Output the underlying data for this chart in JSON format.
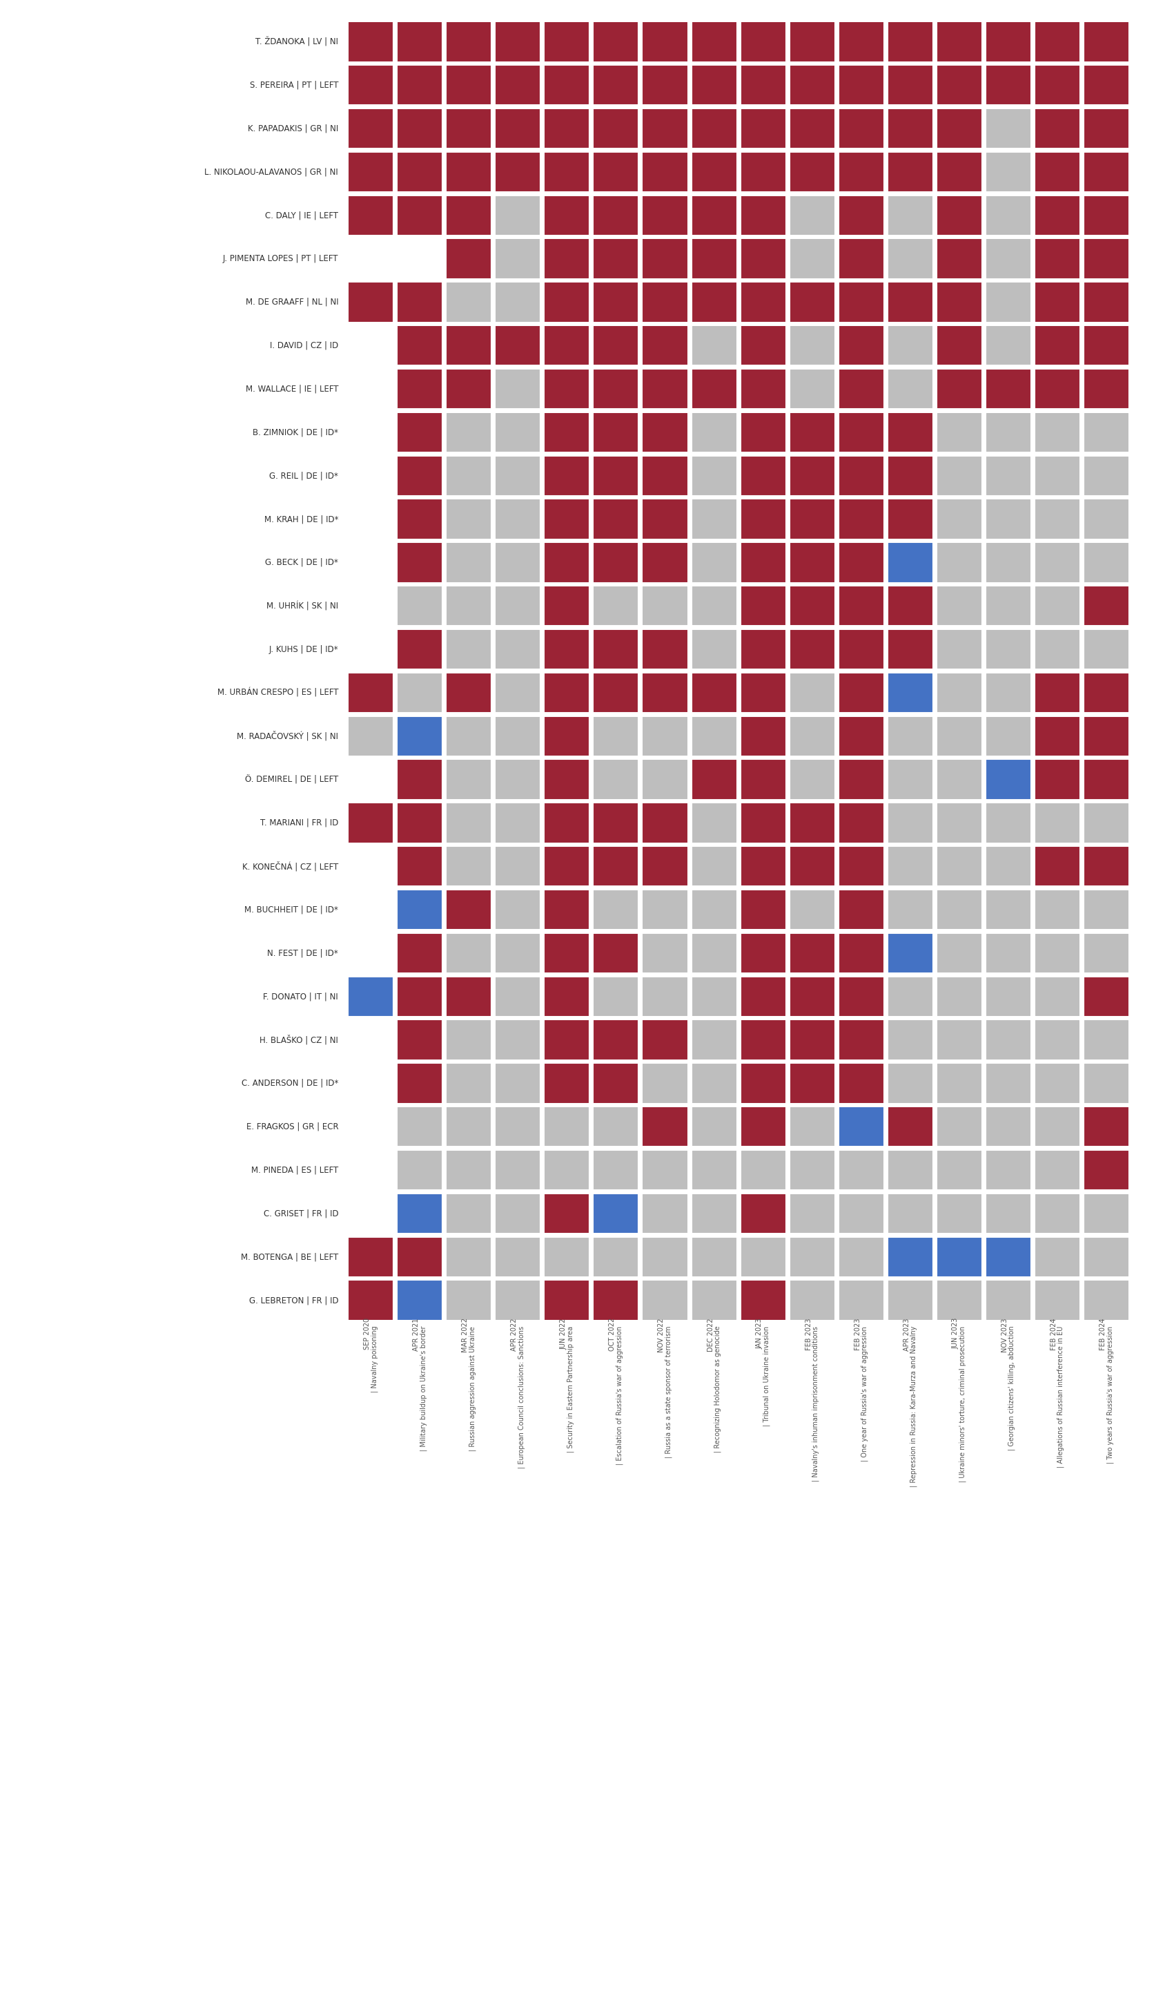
{
  "columns": [
    "Navalny poisoning\nSEP 2020",
    "Military buildup on Ukraine's border\nAPR 2021",
    "Russian aggression against Ukraine\nMAR 2022",
    "European Council conclusions: Sanctions\nAPR 2022",
    "Security in Eastern Partnership area\nJUN 2022",
    "Escalation of Russia's war of aggression\nOCT 2022",
    "Russia as a state sponsor of terrorism\nNOV 2022",
    "Recognizing Holodomor as genocide\nDEC 2022",
    "Tribunal on Ukraine invasion\nJAN 2023",
    "Navalny's inhuman imprisonment conditions\nFEB 2023",
    "One year of Russia's war of aggression\nFEB 2023",
    "Repression in Russia: Kara-Murza and Navalny\nAPR 2023",
    "Ukraine minors' torture, criminal prosecution\nJUN 2023",
    "Georgian citizens' killing, abduction\nNOV 2023",
    "Allegations of Russian interference in EU\nFEB 2024",
    "Two years of Russia's war of aggression\nFEB 2024"
  ],
  "col_dates": [
    "SEP 2020",
    "APR 2021",
    "MAR 2022",
    "APR 2022",
    "JUN 2022",
    "OCT 2022",
    "NOV 2022",
    "DEC 2022",
    "JAN 2023",
    "FEB 2023",
    "FEB 2023",
    "APR 2023",
    "JUN 2023",
    "NOV 2023",
    "FEB 2024",
    "FEB 2024"
  ],
  "col_labels": [
    "Navalny poisoning",
    "Military buildup on Ukraine's border",
    "Russian aggression against Ukraine",
    "European Council conclusions: Sanctions",
    "Security in Eastern Partnership area",
    "Escalation of Russia's war of aggression",
    "Russia as a state sponsor of terrorism",
    "Recognizing Holodomor as genocide",
    "Tribunal on Ukraine invasion",
    "Navalny's inhuman imprisonment conditions",
    "One year of Russia's war of aggression",
    "Repression in Russia: Kara-Murza and Navalny",
    "Ukraine minors' torture, criminal prosecution",
    "Georgian citizens' killing, abduction",
    "Allegations of Russian interference in EU",
    "Two years of Russia's war of aggression"
  ],
  "rows": [
    "T. ŽDANOKA | LV | NI",
    "S. PEREIRA | PT | LEFT",
    "K. PAPADAKIS | GR | NI",
    "L. NIKOLAOU-ALAVANOS | GR | NI",
    "C. DALY | IE | LEFT",
    "J. PIMENTA LOPES | PT | LEFT",
    "M. DE GRAAFF | NL | NI",
    "I. DAVID | CZ | ID",
    "M. WALLACE | IE | LEFT",
    "B. ZIMNIOK | DE | ID*",
    "G. REIL | DE | ID*",
    "M. KRAH | DE | ID*",
    "G. BECK | DE | ID*",
    "M. UHRÍK | SK | NI",
    "J. KUHS | DE | ID*",
    "M. URBÁN CRESPO | ES | LEFT",
    "M. RADAČOVSKÝ | SK | NI",
    "Ö. DEMIREL | DE | LEFT",
    "T. MARIANI | FR | ID",
    "K. KONEČNÁ | CZ | LEFT",
    "M. BUCHHEIT | DE | ID*",
    "N. FEST | DE | ID*",
    "F. DONATO | IT | NI",
    "H. BLAŠKO | CZ | NI",
    "C. ANDERSON | DE | ID*",
    "E. FRAGKOS | GR | ECR",
    "M. PINEDA | ES | LEFT",
    "C. GRISET | FR | ID",
    "M. BOTENGA | BE | LEFT",
    "G. LEBRETON | FR | ID"
  ],
  "grid": [
    [
      "R",
      "R",
      "R",
      "R",
      "R",
      "R",
      "R",
      "R",
      "R",
      "R",
      "R",
      "R",
      "R",
      "R",
      "R",
      "R"
    ],
    [
      "R",
      "R",
      "R",
      "R",
      "R",
      "R",
      "R",
      "R",
      "R",
      "R",
      "R",
      "R",
      "R",
      "R",
      "R",
      "R"
    ],
    [
      "R",
      "R",
      "R",
      "R",
      "R",
      "R",
      "R",
      "R",
      "R",
      "R",
      "R",
      "R",
      "R",
      "G",
      "R",
      "R"
    ],
    [
      "R",
      "R",
      "R",
      "R",
      "R",
      "R",
      "R",
      "R",
      "R",
      "R",
      "R",
      "R",
      "R",
      "G",
      "R",
      "R"
    ],
    [
      "R",
      "R",
      "R",
      "G",
      "R",
      "R",
      "R",
      "R",
      "R",
      "G",
      "R",
      "G",
      "R",
      "G",
      "R",
      "R"
    ],
    [
      "W",
      "W",
      "R",
      "G",
      "R",
      "R",
      "R",
      "R",
      "R",
      "G",
      "R",
      "G",
      "R",
      "G",
      "R",
      "R"
    ],
    [
      "R",
      "R",
      "G",
      "G",
      "R",
      "R",
      "R",
      "R",
      "R",
      "R",
      "R",
      "R",
      "R",
      "G",
      "R",
      "R"
    ],
    [
      "W",
      "R",
      "R",
      "R",
      "R",
      "R",
      "R",
      "G",
      "R",
      "G",
      "R",
      "G",
      "R",
      "G",
      "R",
      "R"
    ],
    [
      "W",
      "R",
      "R",
      "G",
      "R",
      "R",
      "R",
      "R",
      "R",
      "G",
      "R",
      "G",
      "R",
      "R",
      "R",
      "R"
    ],
    [
      "W",
      "R",
      "G",
      "G",
      "R",
      "R",
      "R",
      "G",
      "R",
      "R",
      "R",
      "R",
      "G",
      "G",
      "G",
      "G"
    ],
    [
      "W",
      "R",
      "G",
      "G",
      "R",
      "R",
      "R",
      "G",
      "R",
      "R",
      "R",
      "R",
      "G",
      "G",
      "G",
      "G"
    ],
    [
      "W",
      "R",
      "G",
      "G",
      "R",
      "R",
      "R",
      "G",
      "R",
      "R",
      "R",
      "R",
      "G",
      "G",
      "G",
      "G"
    ],
    [
      "W",
      "R",
      "G",
      "G",
      "R",
      "R",
      "R",
      "G",
      "R",
      "R",
      "R",
      "B",
      "G",
      "G",
      "G",
      "G"
    ],
    [
      "W",
      "G",
      "G",
      "G",
      "R",
      "G",
      "G",
      "G",
      "R",
      "R",
      "R",
      "R",
      "G",
      "G",
      "G",
      "R"
    ],
    [
      "W",
      "R",
      "G",
      "G",
      "R",
      "R",
      "R",
      "G",
      "R",
      "R",
      "R",
      "R",
      "G",
      "G",
      "G",
      "G"
    ],
    [
      "R",
      "G",
      "R",
      "G",
      "R",
      "R",
      "R",
      "R",
      "R",
      "G",
      "R",
      "B",
      "G",
      "G",
      "R",
      "R"
    ],
    [
      "G",
      "B",
      "G",
      "G",
      "R",
      "G",
      "G",
      "G",
      "R",
      "G",
      "R",
      "G",
      "G",
      "G",
      "R",
      "R"
    ],
    [
      "W",
      "R",
      "G",
      "G",
      "R",
      "G",
      "G",
      "R",
      "R",
      "G",
      "R",
      "G",
      "G",
      "B",
      "R",
      "R"
    ],
    [
      "R",
      "R",
      "G",
      "G",
      "R",
      "R",
      "R",
      "G",
      "R",
      "R",
      "R",
      "G",
      "G",
      "G",
      "G",
      "G"
    ],
    [
      "W",
      "R",
      "G",
      "G",
      "R",
      "R",
      "R",
      "G",
      "R",
      "R",
      "R",
      "G",
      "G",
      "G",
      "R",
      "R"
    ],
    [
      "W",
      "B",
      "R",
      "G",
      "R",
      "G",
      "G",
      "G",
      "R",
      "G",
      "R",
      "G",
      "G",
      "G",
      "G",
      "G"
    ],
    [
      "W",
      "R",
      "G",
      "G",
      "R",
      "R",
      "G",
      "G",
      "R",
      "R",
      "R",
      "B",
      "G",
      "G",
      "G",
      "G"
    ],
    [
      "B",
      "R",
      "R",
      "G",
      "R",
      "G",
      "G",
      "G",
      "R",
      "R",
      "R",
      "G",
      "G",
      "G",
      "G",
      "R"
    ],
    [
      "W",
      "R",
      "G",
      "G",
      "R",
      "R",
      "R",
      "G",
      "R",
      "R",
      "R",
      "G",
      "G",
      "G",
      "G",
      "G"
    ],
    [
      "W",
      "R",
      "G",
      "G",
      "R",
      "R",
      "G",
      "G",
      "R",
      "R",
      "R",
      "G",
      "G",
      "G",
      "G",
      "G"
    ],
    [
      "W",
      "G",
      "G",
      "G",
      "G",
      "G",
      "R",
      "G",
      "R",
      "G",
      "B",
      "R",
      "G",
      "G",
      "G",
      "R"
    ],
    [
      "W",
      "G",
      "G",
      "G",
      "G",
      "G",
      "G",
      "G",
      "G",
      "G",
      "G",
      "G",
      "G",
      "G",
      "G",
      "R"
    ],
    [
      "W",
      "B",
      "G",
      "G",
      "R",
      "B",
      "G",
      "G",
      "R",
      "G",
      "G",
      "G",
      "G",
      "G",
      "G",
      "G"
    ],
    [
      "R",
      "R",
      "G",
      "G",
      "G",
      "G",
      "G",
      "G",
      "G",
      "G",
      "G",
      "B",
      "B",
      "B",
      "G",
      "G"
    ],
    [
      "R",
      "B",
      "G",
      "G",
      "R",
      "R",
      "G",
      "G",
      "R",
      "G",
      "G",
      "G",
      "G",
      "G",
      "G",
      "G"
    ]
  ],
  "colors": {
    "R": "#9B2335",
    "G": "#BEBEBE",
    "B": "#4472C4",
    "W": "#FFFFFF"
  },
  "background_color": "#FFFFFF",
  "cell_size": 0.8,
  "fig_width": 16.72,
  "fig_height": 29.0
}
